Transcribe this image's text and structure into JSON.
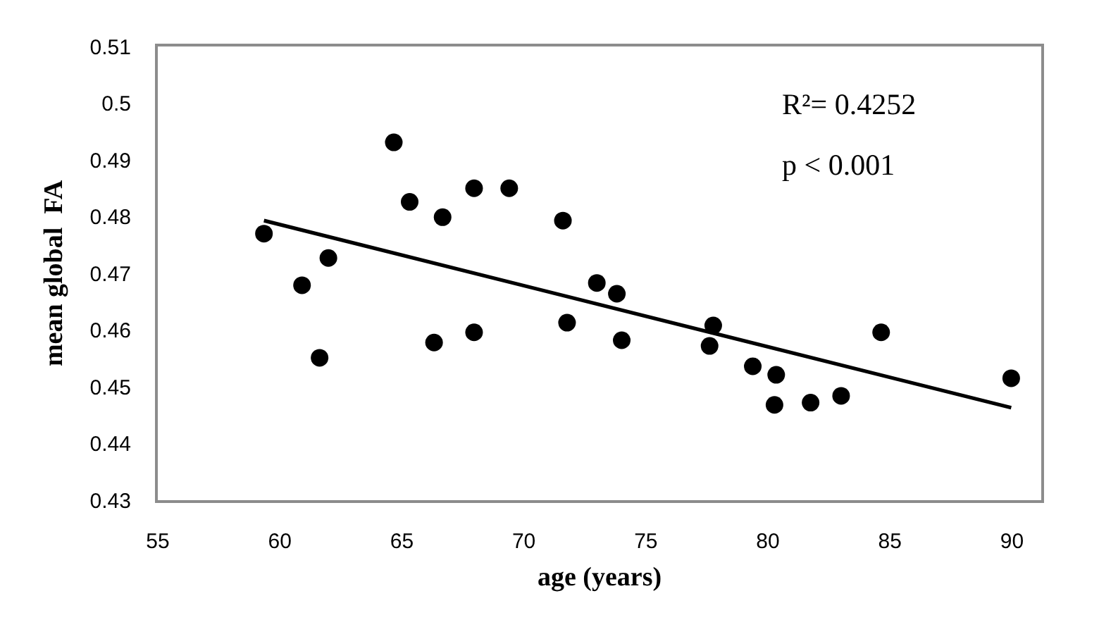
{
  "chart_data": {
    "type": "scatter",
    "xlabel": "age (years)",
    "ylabel": "mean global  FA",
    "annotations": [
      "R²= 0.4252",
      "p < 0.001"
    ],
    "xlim": [
      55,
      91.2
    ],
    "xticks": [
      55,
      60,
      65,
      70,
      75,
      80,
      85,
      90
    ],
    "ylim": [
      0.43,
      0.51
    ],
    "yticks": [
      0.43,
      0.44,
      0.45,
      0.46,
      0.47,
      0.48,
      0.49,
      0.5,
      0.51
    ],
    "series": [
      {
        "color": "#000000",
        "marker": "circle",
        "x": [
          59.35,
          60.91,
          61.63,
          61.99,
          64.67,
          65.32,
          66.32,
          66.67,
          67.96,
          67.96,
          69.4,
          71.6,
          71.77,
          72.99,
          73.81,
          74.01,
          77.61,
          77.76,
          79.38,
          80.34,
          80.27,
          81.75,
          83.0,
          84.64,
          89.97
        ],
        "values": [
          0.477,
          0.4679,
          0.4551,
          0.4727,
          0.4931,
          0.4826,
          0.4578,
          0.4799,
          0.485,
          0.4596,
          0.485,
          0.4793,
          0.4613,
          0.4683,
          0.4664,
          0.4582,
          0.4572,
          0.4608,
          0.4536,
          0.4521,
          0.4468,
          0.4472,
          0.4484,
          0.4596,
          0.4515
        ]
      },
      {
        "type": "line",
        "color": "#000000",
        "marker": "none",
        "x": [
          59.35,
          89.97
        ],
        "values": [
          0.4793,
          0.4463
        ]
      }
    ]
  }
}
